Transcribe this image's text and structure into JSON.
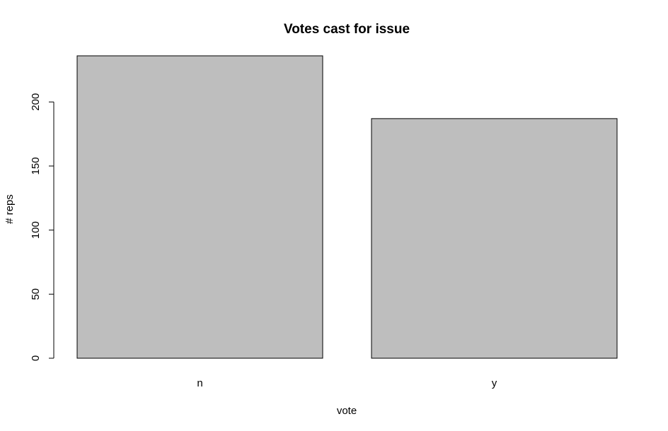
{
  "chart_data": {
    "type": "bar",
    "title": "Votes cast for issue",
    "xlabel": "vote",
    "ylabel": "# reps",
    "categories": [
      "n",
      "y"
    ],
    "values": [
      236,
      187
    ],
    "ylim": [
      0,
      236
    ],
    "yticks": [
      0,
      50,
      100,
      150,
      200
    ],
    "ytick_labels": [
      "0",
      "50",
      "100",
      "150",
      "200"
    ],
    "grid": false,
    "bar_color": "#bebebe",
    "edge_color": "#000000"
  }
}
